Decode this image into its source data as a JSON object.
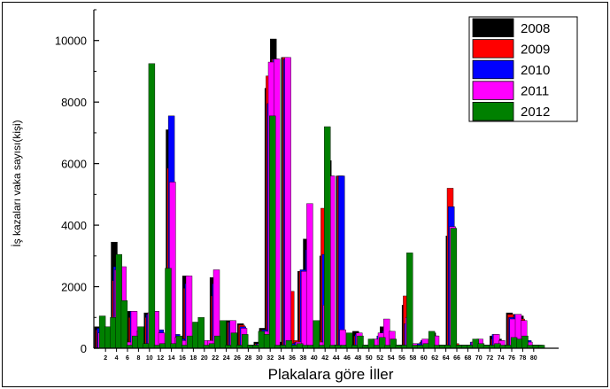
{
  "chart_data": {
    "type": "bar",
    "xlabel": "Plakalara göre İller",
    "ylabel": "İş kazaları vaka sayısı(kişi)",
    "ylim": [
      0,
      11000
    ],
    "yticks": [
      0,
      2000,
      4000,
      6000,
      8000,
      10000
    ],
    "ytick_labels": [
      "0",
      "2000",
      "4000",
      "6000",
      "8000",
      "10000"
    ],
    "xtick_labels": [
      "2",
      "4",
      "6",
      "8",
      "10",
      "12",
      "14",
      "16",
      "18",
      "20",
      "22",
      "24",
      "26",
      "28",
      "30",
      "32",
      "34",
      "36",
      "38",
      "40",
      "42",
      "44",
      "46",
      "48",
      "50",
      "52",
      "54",
      "56",
      "58",
      "60",
      "62",
      "64",
      "66",
      "68",
      "70",
      "72",
      "74",
      "76",
      "78",
      "80"
    ],
    "legend_position": "top-right",
    "grid": false,
    "colors": [
      "#000000",
      "#ff0000",
      "#0000ff",
      "#ff00ff",
      "#008000"
    ],
    "categories": [
      1,
      2,
      3,
      4,
      5,
      6,
      7,
      8,
      9,
      10,
      11,
      12,
      13,
      14,
      15,
      16,
      17,
      18,
      19,
      20,
      21,
      22,
      23,
      24,
      25,
      26,
      27,
      28,
      29,
      30,
      31,
      32,
      33,
      34,
      35,
      36,
      37,
      38,
      39,
      40,
      41,
      42,
      43,
      44,
      45,
      46,
      47,
      48,
      49,
      50,
      51,
      52,
      53,
      54,
      55,
      56,
      57,
      58,
      59,
      60,
      61,
      62,
      63,
      64,
      65,
      66,
      67,
      68,
      69,
      70,
      71,
      72,
      73,
      74,
      75,
      76,
      77,
      78,
      79,
      80,
      81
    ],
    "series": [
      {
        "name": "2008",
        "values": [
          700,
          550,
          200,
          3450,
          2450,
          300,
          1200,
          250,
          100,
          1150,
          1150,
          500,
          150,
          7100,
          400,
          300,
          2350,
          100,
          150,
          100,
          100,
          2300,
          100,
          100,
          900,
          100,
          800,
          100,
          100,
          200,
          650,
          8450,
          10050,
          200,
          9450,
          100,
          200,
          2500,
          3550,
          100,
          200,
          3000,
          6100,
          100,
          5600,
          100,
          100,
          550,
          100,
          100,
          150,
          100,
          700,
          550,
          100,
          100,
          1400,
          100,
          100,
          100,
          100,
          500,
          100,
          100,
          3650,
          100,
          100,
          100,
          100,
          150,
          100,
          100,
          400,
          300,
          100,
          1150,
          1100,
          1050,
          250,
          100,
          100
        ]
      },
      {
        "name": "2009",
        "values": [
          600,
          500,
          400,
          2200,
          2200,
          200,
          1000,
          200,
          100,
          1000,
          1100,
          400,
          150,
          5850,
          350,
          250,
          1950,
          100,
          150,
          100,
          100,
          1700,
          150,
          100,
          850,
          100,
          750,
          100,
          100,
          150,
          600,
          8850,
          9400,
          100,
          9450,
          1850,
          250,
          2500,
          2500,
          100,
          250,
          4550,
          4550,
          100,
          5600,
          100,
          100,
          400,
          100,
          100,
          200,
          300,
          500,
          400,
          100,
          100,
          1700,
          150,
          150,
          200,
          150,
          400,
          100,
          100,
          5200,
          150,
          100,
          100,
          100,
          150,
          100,
          100,
          300,
          150,
          100,
          1100,
          1050,
          950,
          200,
          100,
          100
        ]
      },
      {
        "name": "2010",
        "values": [
          650,
          450,
          300,
          2650,
          2600,
          150,
          1200,
          300,
          100,
          1100,
          1200,
          600,
          150,
          7550,
          450,
          300,
          2100,
          100,
          150,
          200,
          200,
          2100,
          150,
          100,
          850,
          100,
          700,
          100,
          100,
          150,
          600,
          7950,
          9400,
          100,
          9400,
          150,
          200,
          2550,
          3200,
          100,
          200,
          3050,
          5600,
          100,
          5600,
          100,
          100,
          450,
          100,
          100,
          200,
          400,
          550,
          500,
          100,
          100,
          800,
          150,
          150,
          250,
          100,
          400,
          100,
          100,
          4600,
          100,
          100,
          100,
          200,
          200,
          100,
          100,
          450,
          250,
          100,
          1000,
          1100,
          900,
          250,
          100,
          100
        ]
      },
      {
        "name": "2011",
        "values": [
          500,
          400,
          300,
          2550,
          2650,
          200,
          1200,
          550,
          100,
          1150,
          1200,
          500,
          150,
          5400,
          350,
          250,
          2350,
          100,
          150,
          250,
          250,
          2550,
          150,
          100,
          900,
          100,
          650,
          100,
          100,
          150,
          550,
          9300,
          9400,
          100,
          9450,
          100,
          200,
          2500,
          4700,
          100,
          200,
          1400,
          5600,
          100,
          600,
          100,
          100,
          500,
          100,
          100,
          300,
          500,
          950,
          550,
          100,
          100,
          1000,
          150,
          100,
          300,
          100,
          400,
          100,
          100,
          3950,
          100,
          100,
          100,
          200,
          300,
          100,
          100,
          450,
          250,
          100,
          950,
          1100,
          900,
          200,
          100,
          100
        ]
      },
      {
        "name": "2012",
        "values": [
          1050,
          700,
          1000,
          3050,
          1550,
          100,
          400,
          700,
          150,
          9250,
          100,
          150,
          2600,
          150,
          400,
          100,
          400,
          850,
          1000,
          100,
          150,
          400,
          900,
          100,
          500,
          100,
          450,
          100,
          100,
          550,
          450,
          7550,
          100,
          100,
          250,
          100,
          150,
          100,
          100,
          900,
          100,
          7200,
          100,
          100,
          100,
          500,
          100,
          400,
          100,
          300,
          100,
          350,
          100,
          300,
          100,
          100,
          3100,
          100,
          100,
          150,
          550,
          100,
          100,
          100,
          3900,
          100,
          100,
          100,
          300,
          150,
          100,
          100,
          150,
          100,
          100,
          350,
          300,
          400,
          100,
          100,
          100
        ]
      }
    ]
  }
}
